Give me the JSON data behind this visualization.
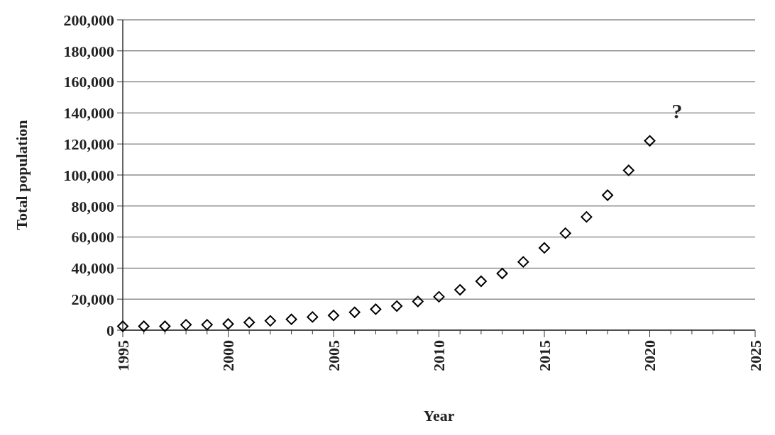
{
  "chart_data": {
    "type": "scatter",
    "xlabel": "Year",
    "ylabel": "Total population",
    "x": [
      1995,
      1996,
      1997,
      1998,
      1999,
      2000,
      2001,
      2002,
      2003,
      2004,
      2005,
      2006,
      2007,
      2008,
      2009,
      2010,
      2011,
      2012,
      2013,
      2014,
      2015,
      2016,
      2017,
      2018,
      2019,
      2020
    ],
    "series": [
      {
        "color": "#000000",
        "values": [
          2500,
          2500,
          2500,
          3500,
          3500,
          4000,
          5000,
          6000,
          7000,
          8500,
          9500,
          11500,
          13500,
          15500,
          18500,
          21500,
          26000,
          31500,
          36500,
          44000,
          53000,
          62500,
          73000,
          87000,
          103000,
          122000
        ]
      }
    ],
    "marker": "diamond",
    "grid": "y",
    "xlim": [
      1995,
      2025
    ],
    "xticks": [
      1995,
      {
        "value": 1996,
        "label": null
      },
      {
        "value": 1997,
        "label": null
      },
      {
        "value": 1998,
        "label": null
      },
      {
        "value": 1999,
        "label": null
      },
      2000,
      {
        "value": 2001,
        "label": null
      },
      {
        "value": 2002,
        "label": null
      },
      {
        "value": 2003,
        "label": null
      },
      {
        "value": 2004,
        "label": null
      },
      2005,
      {
        "value": 2006,
        "label": null
      },
      {
        "value": 2007,
        "label": null
      },
      {
        "value": 2008,
        "label": null
      },
      {
        "value": 2009,
        "label": null
      },
      2010,
      {
        "value": 2011,
        "label": null
      },
      {
        "value": 2012,
        "label": null
      },
      {
        "value": 2013,
        "label": null
      },
      {
        "value": 2014,
        "label": null
      },
      2015,
      {
        "value": 2016,
        "label": null
      },
      {
        "value": 2017,
        "label": null
      },
      {
        "value": 2018,
        "label": null
      },
      {
        "value": 2019,
        "label": null
      },
      2020,
      {
        "value": 2021,
        "label": null
      },
      {
        "value": 2022,
        "label": null
      },
      {
        "value": 2023,
        "label": null
      },
      {
        "value": 2024,
        "label": null
      },
      2025
    ],
    "ylim": [
      0,
      200000
    ],
    "yticks": [
      {
        "value": 0,
        "label": "0"
      },
      {
        "value": 20000,
        "label": "20,000"
      },
      {
        "value": 40000,
        "label": "40,000"
      },
      {
        "value": 60000,
        "label": "60,000"
      },
      {
        "value": 80000,
        "label": "80,000"
      },
      {
        "value": 100000,
        "label": "100,000"
      },
      {
        "value": 120000,
        "label": "120,000"
      },
      {
        "value": 140000,
        "label": "140,000"
      },
      {
        "value": 160000,
        "label": "160,000"
      },
      {
        "value": 180000,
        "label": "180,000"
      },
      {
        "value": 200000,
        "label": "200,000"
      }
    ],
    "annotations": [
      "?"
    ]
  }
}
